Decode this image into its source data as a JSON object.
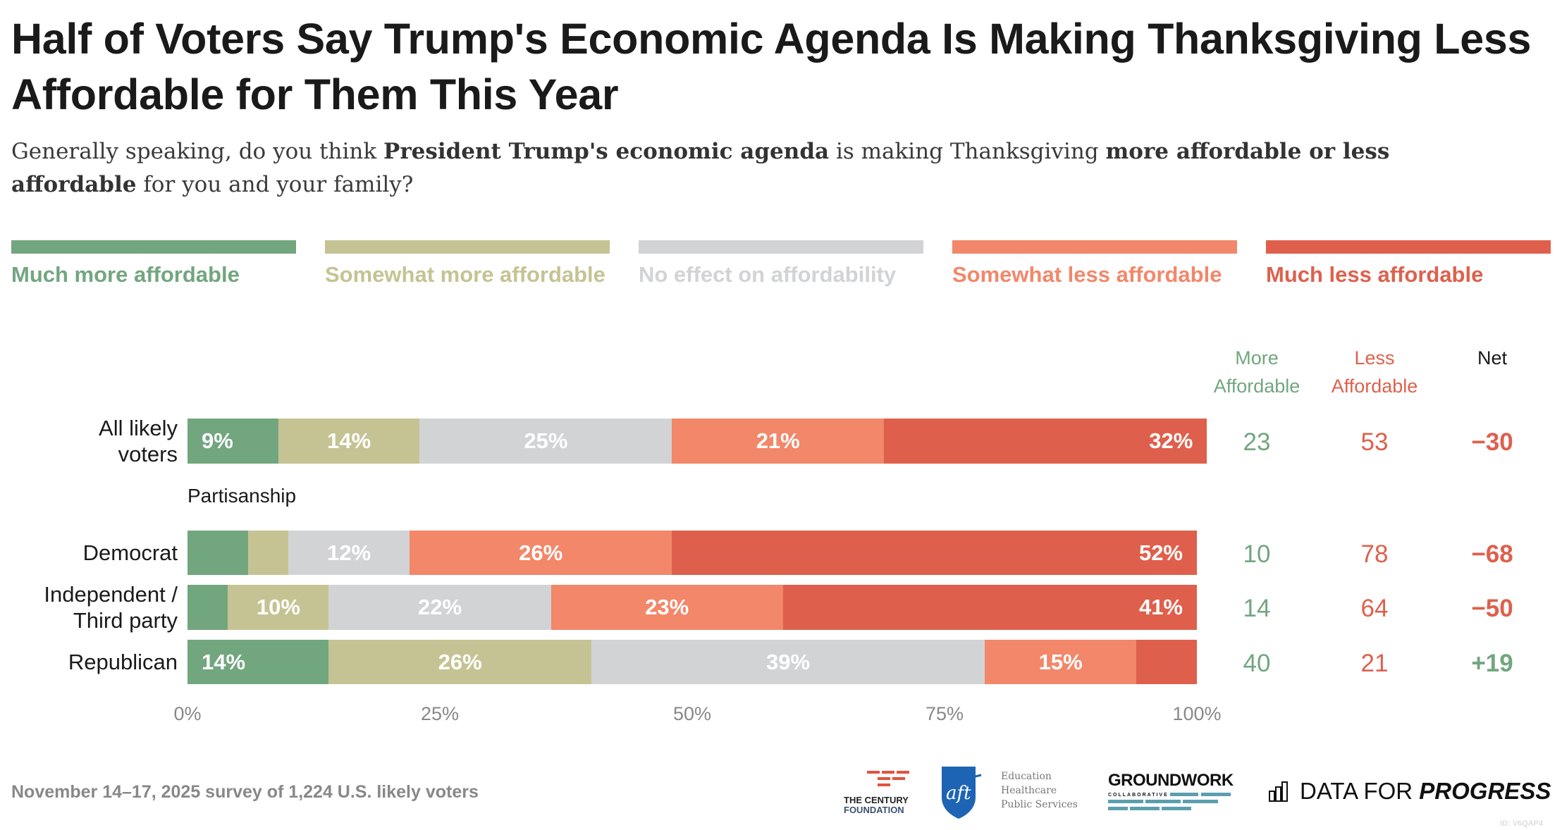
{
  "title": "Half of Voters Say Trump's Economic Agenda Is Making Thanksgiving Less Affordable for Them This Year",
  "subtitle": {
    "parts": [
      {
        "text": "Generally speaking, do you think ",
        "bold": false
      },
      {
        "text": "President Trump's economic agenda",
        "bold": true
      },
      {
        "text": " is making Thanksgiving ",
        "bold": false
      },
      {
        "text": "more affordable or less affordable",
        "bold": true
      },
      {
        "text": " for you and your family?",
        "bold": false
      }
    ]
  },
  "colors": {
    "much_more": "#72a67f",
    "somewhat_more": "#c5c393",
    "no_effect": "#d2d3d5",
    "somewhat_less": "#f2876a",
    "much_less": "#de604c",
    "axis_text": "#888888",
    "text": "#1a1a1a"
  },
  "legend": [
    {
      "key": "much_more",
      "label": "Much more affordable"
    },
    {
      "key": "somewhat_more",
      "label": "Somewhat more affordable"
    },
    {
      "key": "no_effect",
      "label": "No effect on affordability"
    },
    {
      "key": "somewhat_less",
      "label": "Somewhat less affordable"
    },
    {
      "key": "much_less",
      "label": "Much less affordable"
    }
  ],
  "columns": {
    "more": "More Affordable",
    "less": "Less Affordable",
    "net": "Net"
  },
  "group_label": "Partisanship",
  "chart_data": {
    "type": "bar",
    "orientation": "horizontal-stacked-100",
    "title": "Half of Voters Say Trump's Economic Agenda Is Making Thanksgiving Less Affordable for Them This Year",
    "xlabel": "",
    "ylabel": "",
    "xlim": [
      0,
      100
    ],
    "x_ticks": [
      "0%",
      "25%",
      "50%",
      "75%",
      "100%"
    ],
    "grid": false,
    "legend_position": "top",
    "categories": [
      "All likely voters",
      "Democrat",
      "Independent / Third party",
      "Republican"
    ],
    "series": [
      {
        "name": "Much more affordable",
        "key": "much_more",
        "values": [
          9,
          6,
          4,
          14
        ],
        "labels": [
          "9%",
          "",
          "",
          "14%"
        ]
      },
      {
        "name": "Somewhat more affordable",
        "key": "somewhat_more",
        "values": [
          14,
          4,
          10,
          26
        ],
        "labels": [
          "14%",
          "",
          "10%",
          "26%"
        ]
      },
      {
        "name": "No effect on affordability",
        "key": "no_effect",
        "values": [
          25,
          12,
          22,
          39
        ],
        "labels": [
          "25%",
          "12%",
          "22%",
          "39%"
        ]
      },
      {
        "name": "Somewhat less affordable",
        "key": "somewhat_less",
        "values": [
          21,
          26,
          23,
          15
        ],
        "labels": [
          "21%",
          "26%",
          "23%",
          "15%"
        ]
      },
      {
        "name": "Much less affordable",
        "key": "much_less",
        "values": [
          32,
          52,
          41,
          6
        ],
        "labels": [
          "32%",
          "52%",
          "41%",
          ""
        ]
      }
    ],
    "summary": [
      {
        "more": "23",
        "less": "53",
        "net": "−30",
        "net_sign": "neg"
      },
      {
        "more": "10",
        "less": "78",
        "net": "−68",
        "net_sign": "neg"
      },
      {
        "more": "14",
        "less": "64",
        "net": "−50",
        "net_sign": "neg"
      },
      {
        "more": "40",
        "less": "21",
        "net": "+19",
        "net_sign": "pos"
      }
    ],
    "row_label_lines": [
      [
        "All likely",
        "voters"
      ],
      [
        "Democrat"
      ],
      [
        "Independent /",
        "Third party"
      ],
      [
        "Republican"
      ]
    ]
  },
  "footer": {
    "note": "November 14–17, 2025 survey of 1,224 U.S. likely voters",
    "logos": {
      "century_line1": "THE CENTURY",
      "century_line2": "FOUNDATION",
      "aft_mark": "aft",
      "aft_line1": "Education",
      "aft_line2": "Healthcare",
      "aft_line3": "Public Services",
      "groundwork": "GROUNDWORK",
      "groundwork_sub": "COLLABORATIVE",
      "dfp_light": "DATA FOR ",
      "dfp_bold": "PROGRESS"
    },
    "id": "ID: V6QAP4"
  }
}
